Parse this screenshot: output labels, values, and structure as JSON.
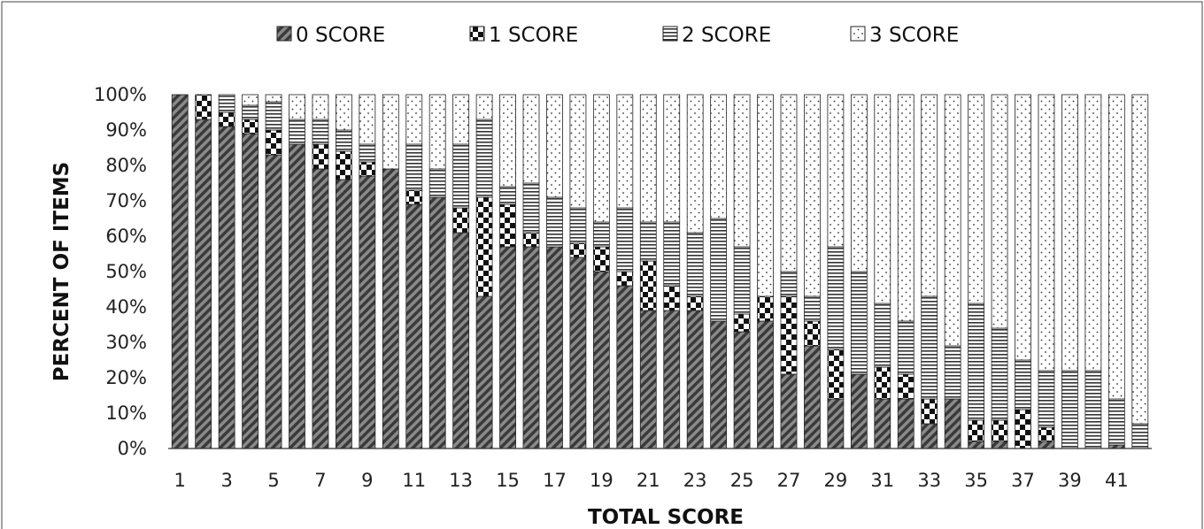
{
  "chart_data": {
    "type": "bar",
    "stacked": true,
    "percent_stacked": true,
    "xlabel": "TOTAL SCORE",
    "ylabel": "PERCENT OF ITEMS",
    "ylim": [
      0,
      100
    ],
    "y_ticks": [
      "0%",
      "10%",
      "20%",
      "30%",
      "40%",
      "50%",
      "60%",
      "70%",
      "80%",
      "90%",
      "100%"
    ],
    "x_tick_labels": [
      "1",
      "3",
      "5",
      "7",
      "9",
      "11",
      "13",
      "15",
      "17",
      "19",
      "21",
      "23",
      "25",
      "27",
      "29",
      "31",
      "33",
      "35",
      "37",
      "39",
      "41"
    ],
    "legend_position": "top",
    "grid": false,
    "categories": [
      1,
      2,
      3,
      4,
      5,
      6,
      7,
      8,
      9,
      10,
      11,
      12,
      13,
      14,
      15,
      16,
      17,
      18,
      19,
      20,
      21,
      22,
      23,
      24,
      25,
      26,
      27,
      28,
      29,
      30,
      31,
      32,
      33,
      34,
      35,
      36,
      37,
      38,
      39,
      40,
      41,
      42
    ],
    "series": [
      {
        "name": "0 SCORE",
        "pattern": "diagonal-hatch",
        "color": "#555555",
        "values": [
          100,
          93,
          91,
          89,
          83,
          86,
          79,
          76,
          77,
          79,
          69,
          71,
          61,
          43,
          57,
          57,
          57,
          54,
          50,
          46,
          39,
          39,
          39,
          36,
          33,
          36,
          21,
          29,
          14,
          21,
          14,
          14,
          7,
          14,
          2,
          2,
          0,
          2,
          0,
          0,
          1,
          0
        ]
      },
      {
        "name": "1 SCORE",
        "pattern": "checkerboard",
        "color": "#111111",
        "values": [
          0,
          7,
          4,
          4,
          7,
          0,
          7,
          8,
          4,
          0,
          4,
          0,
          7,
          28,
          12,
          4,
          0,
          4,
          7,
          4,
          14,
          7,
          4,
          0,
          5,
          7,
          22,
          7,
          14,
          0,
          9,
          7,
          7,
          0,
          6,
          6,
          11,
          4,
          0,
          0,
          0,
          0
        ]
      },
      {
        "name": "2 SCORE",
        "pattern": "horizontal-lines",
        "color": "#333333",
        "values": [
          0,
          0,
          5,
          4,
          8,
          7,
          7,
          6,
          5,
          0,
          13,
          8,
          18,
          22,
          5,
          14,
          14,
          10,
          7,
          18,
          11,
          18,
          18,
          29,
          19,
          0,
          7,
          7,
          29,
          29,
          18,
          15,
          29,
          15,
          33,
          26,
          14,
          16,
          22,
          22,
          13,
          7
        ]
      },
      {
        "name": "3 SCORE",
        "pattern": "dots",
        "color": "#ffffff",
        "values": [
          0,
          0,
          0,
          3,
          2,
          7,
          7,
          10,
          14,
          21,
          14,
          21,
          14,
          7,
          26,
          25,
          29,
          32,
          36,
          32,
          36,
          36,
          39,
          35,
          43,
          57,
          50,
          57,
          43,
          50,
          59,
          64,
          57,
          71,
          59,
          66,
          75,
          78,
          78,
          78,
          86,
          93
        ]
      }
    ]
  }
}
